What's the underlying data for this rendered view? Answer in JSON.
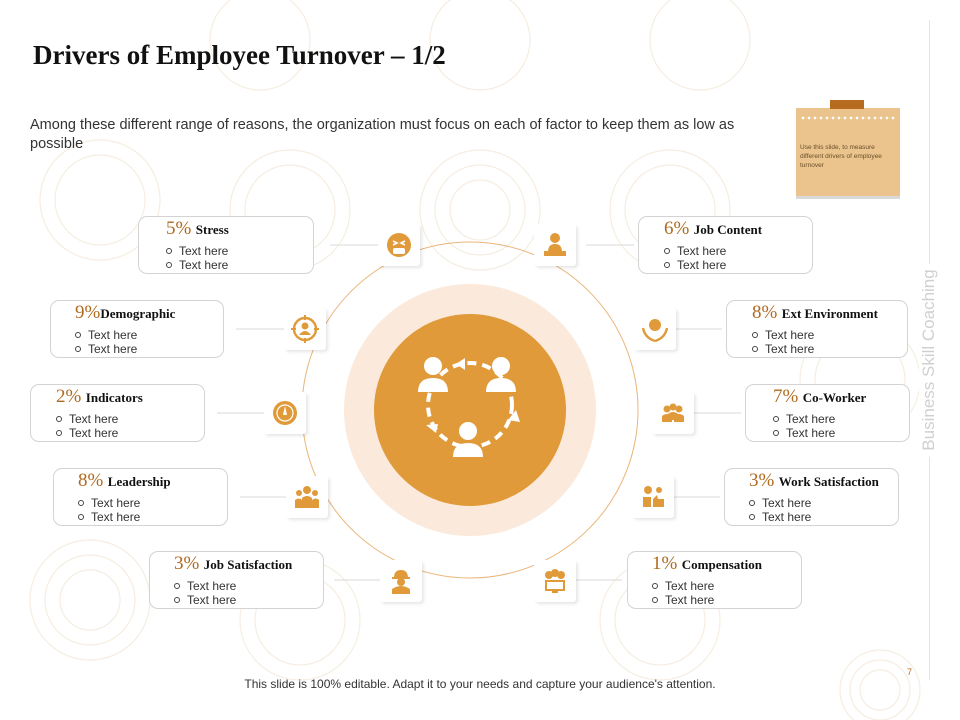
{
  "slide": {
    "title": "Drivers of Employee Turnover – 1/2",
    "subtitle": "Among these different range of reasons, the organization must focus on each of factor to keep them as low as possible",
    "note": "Use this slide, to measure different drivers of employee turnover",
    "vertical_label": "Business Skill Coaching",
    "page_number": "7",
    "footer": "This slide is 100% editable. Adapt it to your needs and capture your audience's attention."
  },
  "colors": {
    "accent": "#e09a3a",
    "accent_dark": "#b06a20",
    "ring": "#fbeadb",
    "note": "#eac38d"
  },
  "drivers": [
    {
      "id": "stress",
      "pct": "5%",
      "label": "Stress",
      "icon": "stressed-face-icon",
      "bullets": [
        "Text here",
        "Text here"
      ]
    },
    {
      "id": "demographic",
      "pct": "9%",
      "label": "Demographic",
      "icon": "target-person-icon",
      "bullets": [
        "Text here",
        "Text here"
      ]
    },
    {
      "id": "indicators",
      "pct": "2%",
      "label": "Indicators",
      "icon": "compass-icon",
      "bullets": [
        "Text here",
        "Text here"
      ]
    },
    {
      "id": "leadership",
      "pct": "8%",
      "label": "Leadership",
      "icon": "team-icon",
      "bullets": [
        "Text here",
        "Text here"
      ]
    },
    {
      "id": "job-satisfaction",
      "pct": "3%",
      "label": "Job Satisfaction",
      "icon": "worker-helmet-icon",
      "bullets": [
        "Text here",
        "Text here"
      ]
    },
    {
      "id": "job-content",
      "pct": "6%",
      "label": "Job Content",
      "icon": "person-laptop-icon",
      "bullets": [
        "Text here",
        "Text here"
      ]
    },
    {
      "id": "ext-environment",
      "pct": "8%",
      "label": "Ext Environment",
      "icon": "globe-hands-icon",
      "bullets": [
        "Text here",
        "Text here"
      ]
    },
    {
      "id": "co-worker",
      "pct": "7%",
      "label": "Co-Worker",
      "icon": "group-people-icon",
      "bullets": [
        "Text here",
        "Text here"
      ]
    },
    {
      "id": "work-satisfaction",
      "pct": "3%",
      "label": "Work Satisfaction",
      "icon": "thumbs-up-money-icon",
      "bullets": [
        "Text here",
        "Text here"
      ]
    },
    {
      "id": "compensation",
      "pct": "1%",
      "label": "Compensation",
      "icon": "money-computer-icon",
      "bullets": [
        "Text here",
        "Text here"
      ]
    }
  ]
}
